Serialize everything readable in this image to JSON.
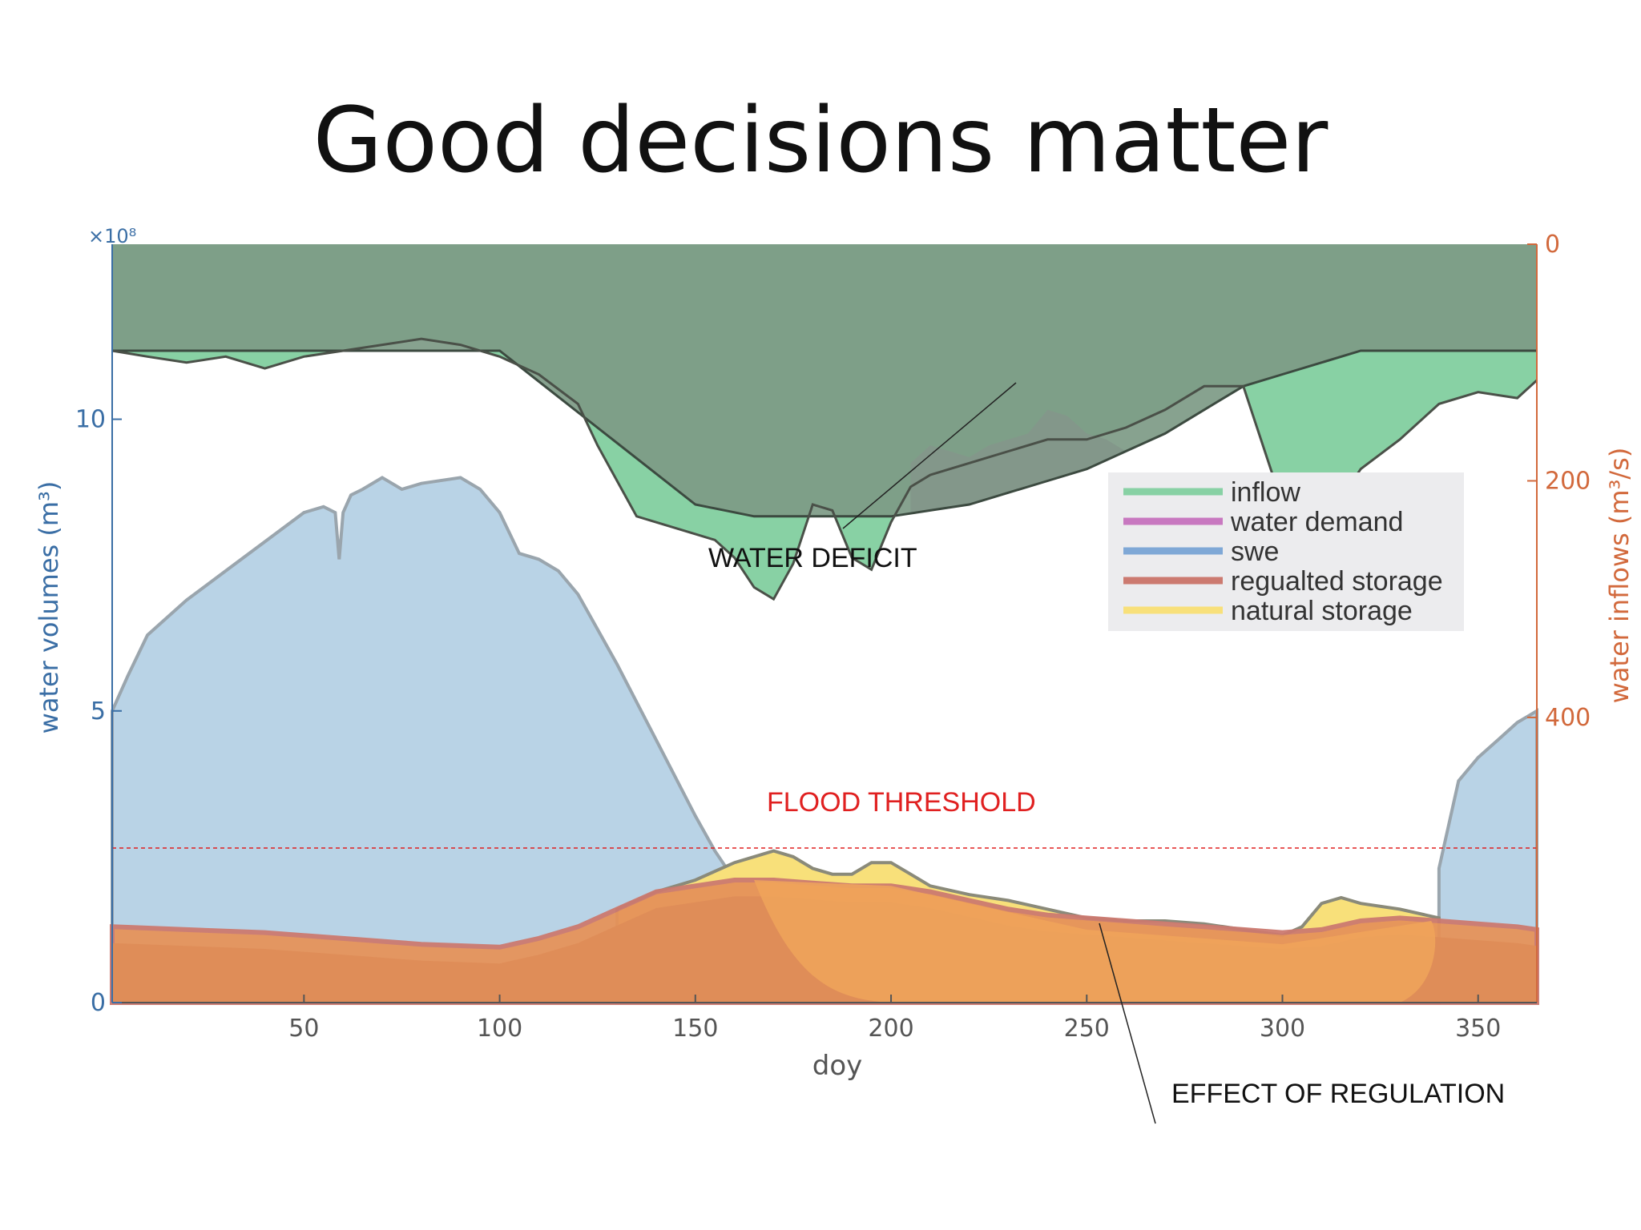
{
  "slide": {
    "title": "Good decisions matter"
  },
  "chart_data": {
    "type": "area",
    "xlabel": "doy",
    "ylabel_left": "water volumes (m³)",
    "ylabel_right": "water inflows (m³/s)",
    "left_multiplier": "×10⁸",
    "xlim": [
      1,
      365
    ],
    "ylim_left": [
      0,
      13
    ],
    "ylim_right_inverted": [
      0,
      500
    ],
    "x_ticks": [
      "50",
      "100",
      "150",
      "200",
      "250",
      "300",
      "350"
    ],
    "x_tick_values": [
      50,
      100,
      150,
      200,
      250,
      300,
      350
    ],
    "left_ticks": [
      "0",
      "5",
      "10"
    ],
    "left_tick_values": [
      0,
      5,
      10
    ],
    "right_ticks": [
      "0",
      "200",
      "400"
    ],
    "right_tick_values": [
      0,
      200,
      400
    ],
    "colors": {
      "inflow": "#88d1a4",
      "water_demand": "#c878c0",
      "swe": "#b9d3e6",
      "regulated_storage": "#cc7a70",
      "natural_storage": "#f8e07a",
      "overlay": "#7d9a86",
      "left_axis": "#3a6ea5",
      "right_axis": "#d2693c",
      "flood": "#e02020"
    },
    "legend": {
      "position": "right",
      "items": [
        "inflow",
        "water demand",
        "swe",
        "regualted storage",
        "natural storage"
      ]
    },
    "series": {
      "inflow": {
        "name": "inflow",
        "axis": "right",
        "x": [
          1,
          10,
          20,
          30,
          40,
          50,
          60,
          70,
          80,
          90,
          100,
          110,
          120,
          125,
          130,
          135,
          140,
          145,
          150,
          155,
          160,
          165,
          170,
          175,
          180,
          185,
          190,
          195,
          200,
          205,
          210,
          215,
          220,
          230,
          240,
          250,
          260,
          270,
          280,
          290,
          295,
          300,
          305,
          308,
          312,
          315,
          320,
          330,
          340,
          350,
          360,
          365
        ],
        "values": [
          90,
          95,
          100,
          95,
          105,
          95,
          90,
          85,
          80,
          85,
          95,
          110,
          135,
          170,
          200,
          230,
          235,
          240,
          245,
          250,
          265,
          290,
          300,
          270,
          220,
          225,
          265,
          275,
          235,
          205,
          195,
          190,
          185,
          175,
          165,
          165,
          155,
          140,
          120,
          120,
          170,
          220,
          240,
          245,
          240,
          215,
          190,
          165,
          135,
          125,
          130,
          115
        ]
      },
      "water_demand": {
        "name": "water demand",
        "axis": "right",
        "x": [
          1,
          50,
          100,
          150,
          165,
          170,
          175,
          180,
          190,
          200,
          210,
          220,
          230,
          240,
          250,
          260,
          270,
          280,
          290,
          300,
          320,
          365
        ],
        "values": [
          90,
          90,
          90,
          220,
          230,
          230,
          230,
          230,
          230,
          230,
          225,
          220,
          210,
          200,
          190,
          175,
          160,
          140,
          120,
          110,
          90,
          90
        ],
        "peaks_x": [
          205,
          210,
          215,
          220,
          225,
          230,
          235,
          240,
          245,
          250,
          255,
          260
        ],
        "peaks_values": [
          185,
          170,
          175,
          180,
          170,
          165,
          160,
          140,
          145,
          160,
          165,
          175
        ]
      },
      "swe": {
        "name": "swe",
        "axis": "left",
        "x": [
          1,
          5,
          10,
          20,
          30,
          40,
          50,
          55,
          58,
          59,
          60,
          62,
          65,
          70,
          75,
          80,
          90,
          95,
          100,
          105,
          110,
          115,
          120,
          130,
          140,
          150,
          155,
          160,
          165,
          170,
          340,
          345,
          350,
          355,
          360,
          365
        ],
        "values": [
          5.0,
          5.6,
          6.3,
          6.9,
          7.4,
          7.9,
          8.4,
          8.5,
          8.4,
          7.6,
          8.4,
          8.7,
          8.8,
          9.0,
          8.8,
          8.9,
          9.0,
          8.8,
          8.4,
          7.7,
          7.6,
          7.4,
          7.0,
          5.8,
          4.5,
          3.2,
          2.6,
          2.1,
          1.6,
          1.3,
          2.3,
          3.8,
          4.2,
          4.5,
          4.8,
          5.0
        ]
      },
      "regulated_storage": {
        "name": "regualted storage",
        "axis": "left",
        "x": [
          1,
          20,
          40,
          60,
          80,
          100,
          110,
          120,
          130,
          140,
          150,
          160,
          170,
          180,
          190,
          200,
          210,
          220,
          230,
          240,
          250,
          260,
          270,
          280,
          290,
          300,
          310,
          320,
          330,
          340,
          350,
          360,
          365
        ],
        "values": [
          1.3,
          1.25,
          1.2,
          1.1,
          1.0,
          0.95,
          1.1,
          1.3,
          1.6,
          1.9,
          2.0,
          2.1,
          2.1,
          2.05,
          2.0,
          2.0,
          1.9,
          1.75,
          1.6,
          1.5,
          1.45,
          1.4,
          1.35,
          1.3,
          1.25,
          1.2,
          1.25,
          1.4,
          1.45,
          1.4,
          1.35,
          1.3,
          1.25
        ]
      },
      "natural_storage": {
        "name": "natural storage",
        "axis": "left",
        "x": [
          130,
          140,
          150,
          155,
          160,
          165,
          170,
          175,
          180,
          185,
          190,
          195,
          200,
          205,
          210,
          220,
          230,
          240,
          250,
          260,
          270,
          280,
          290,
          300,
          305,
          310,
          315,
          320,
          330,
          340
        ],
        "values": [
          1.6,
          1.9,
          2.1,
          2.25,
          2.4,
          2.5,
          2.6,
          2.5,
          2.3,
          2.2,
          2.2,
          2.4,
          2.4,
          2.2,
          2.0,
          1.85,
          1.75,
          1.6,
          1.45,
          1.4,
          1.4,
          1.35,
          1.25,
          1.15,
          1.3,
          1.7,
          1.8,
          1.7,
          1.6,
          1.45
        ]
      },
      "flood_threshold_left": 2.65,
      "demand_plateau_right": 110
    },
    "annotations": {
      "water_deficit": "WATER DEFICIT",
      "flood_threshold": "FLOOD THRESHOLD",
      "effect_of_regulation": "EFFECT OF REGULATION"
    }
  }
}
